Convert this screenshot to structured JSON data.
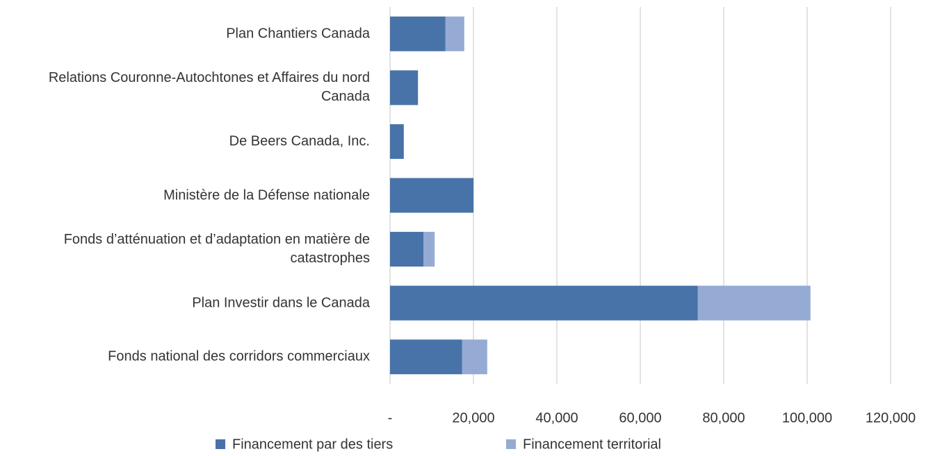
{
  "chart_data": {
    "type": "stacked-barh",
    "categories": [
      "Plan Chantiers Canada",
      "Relations Couronne-Autochtones et Affaires du nord Canada",
      "De Beers Canada, Inc.",
      "Ministère de la Défense nationale",
      "Fonds d’atténuation et d’adaptation en matière de catastrophes",
      "Plan Investir dans le Canada",
      "Fonds national des corridors commerciaux"
    ],
    "series": [
      {
        "name": "Financement par des tiers",
        "color": "#4873a8",
        "values": [
          13300,
          6700,
          3300,
          20000,
          8000,
          73800,
          17300
        ]
      },
      {
        "name": "Financement territorial",
        "color": "#95abd3",
        "values": [
          4500,
          0,
          0,
          0,
          2700,
          27000,
          6000
        ]
      }
    ],
    "xlim": [
      0,
      120000
    ],
    "xticks": [
      {
        "value": 0,
        "label": "-"
      },
      {
        "value": 20000,
        "label": "20,000"
      },
      {
        "value": 40000,
        "label": "40,000"
      },
      {
        "value": 60000,
        "label": "60,000"
      },
      {
        "value": 80000,
        "label": "80,000"
      },
      {
        "value": 100000,
        "label": "100,000"
      },
      {
        "value": 120000,
        "label": "120,000"
      }
    ],
    "grid": true,
    "legend": "bottom"
  }
}
